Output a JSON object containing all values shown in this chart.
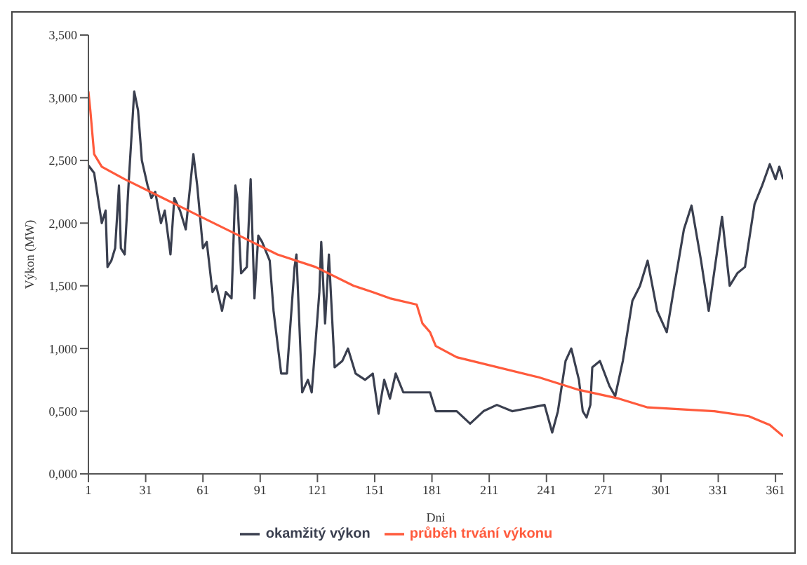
{
  "chart_data": {
    "type": "line",
    "xlabel": "Dni",
    "ylabel": "Výkon (MW)",
    "xlim": [
      1,
      365
    ],
    "xticks": [
      1,
      31,
      61,
      91,
      121,
      151,
      181,
      211,
      241,
      271,
      301,
      331,
      361
    ],
    "ylim": [
      0,
      3.5
    ],
    "yticks": [
      {
        "value": 0,
        "label": "0,000"
      },
      {
        "value": 0.5,
        "label": "0,500"
      },
      {
        "value": 1,
        "label": "1,000"
      },
      {
        "value": 1.5,
        "label": "1,500"
      },
      {
        "value": 2,
        "label": "2,000"
      },
      {
        "value": 2.5,
        "label": "2,500"
      },
      {
        "value": 3,
        "label": "3,000"
      },
      {
        "value": 3.5,
        "label": "3,500"
      }
    ],
    "grid": false,
    "legend": "bottom",
    "marker": "none",
    "line_style": "solid",
    "series": [
      {
        "name": "okamžitý výkon",
        "color": "#3a3f4f",
        "x": [
          1,
          4,
          7,
          8,
          10,
          11,
          13,
          15,
          17,
          18,
          20,
          22,
          25,
          27,
          29,
          32,
          34,
          36,
          39,
          41,
          44,
          46,
          49,
          52,
          56,
          58,
          61,
          63,
          66,
          68,
          71,
          73,
          76,
          78,
          79,
          81,
          84,
          86,
          88,
          90,
          92,
          96,
          98,
          102,
          105,
          109,
          110,
          113,
          116,
          118,
          122,
          123,
          125,
          127,
          130,
          134,
          137,
          141,
          146,
          150,
          153,
          156,
          159,
          162,
          166,
          173,
          180,
          183,
          194,
          201,
          208,
          215,
          223,
          230,
          240,
          244,
          247,
          251,
          254,
          258,
          260,
          262,
          264,
          265,
          269,
          274,
          277,
          281,
          286,
          290,
          294,
          299,
          304,
          308,
          313,
          317,
          322,
          326,
          333,
          337,
          341,
          345,
          350,
          354,
          358,
          361,
          363,
          365
        ],
        "values": [
          2.46,
          2.4,
          2.1,
          2.0,
          2.1,
          1.65,
          1.7,
          1.8,
          2.3,
          1.8,
          1.75,
          2.3,
          3.05,
          2.9,
          2.5,
          2.3,
          2.2,
          2.25,
          2.0,
          2.1,
          1.75,
          2.2,
          2.1,
          1.95,
          2.55,
          2.3,
          1.8,
          1.85,
          1.45,
          1.5,
          1.3,
          1.45,
          1.4,
          2.3,
          2.2,
          1.6,
          1.65,
          2.35,
          1.4,
          1.9,
          1.85,
          1.7,
          1.3,
          0.8,
          0.8,
          1.65,
          1.75,
          0.65,
          0.75,
          0.65,
          1.45,
          1.85,
          1.2,
          1.75,
          0.85,
          0.9,
          1.0,
          0.8,
          0.75,
          0.8,
          0.48,
          0.75,
          0.6,
          0.8,
          0.65,
          0.65,
          0.65,
          0.5,
          0.5,
          0.4,
          0.5,
          0.55,
          0.5,
          0.52,
          0.55,
          0.33,
          0.5,
          0.9,
          1.0,
          0.75,
          0.5,
          0.45,
          0.55,
          0.85,
          0.9,
          0.7,
          0.62,
          0.9,
          1.38,
          1.5,
          1.7,
          1.3,
          1.13,
          1.5,
          1.95,
          2.14,
          1.7,
          1.3,
          2.05,
          1.5,
          1.6,
          1.65,
          2.15,
          2.3,
          2.47,
          2.35,
          2.45,
          2.35
        ]
      },
      {
        "name": "průběh trvání výkonu",
        "color": "#ff5a3c",
        "x": [
          1,
          2,
          4,
          8,
          20,
          40,
          60,
          80,
          100,
          120,
          140,
          150,
          159,
          173,
          176,
          180,
          183,
          194,
          237,
          258,
          279,
          294,
          329,
          347,
          358,
          365
        ],
        "values": [
          3.05,
          2.9,
          2.55,
          2.45,
          2.35,
          2.2,
          2.05,
          1.9,
          1.75,
          1.65,
          1.5,
          1.45,
          1.4,
          1.35,
          1.2,
          1.13,
          1.02,
          0.93,
          0.77,
          0.67,
          0.6,
          0.53,
          0.5,
          0.46,
          0.39,
          0.3
        ]
      }
    ]
  }
}
